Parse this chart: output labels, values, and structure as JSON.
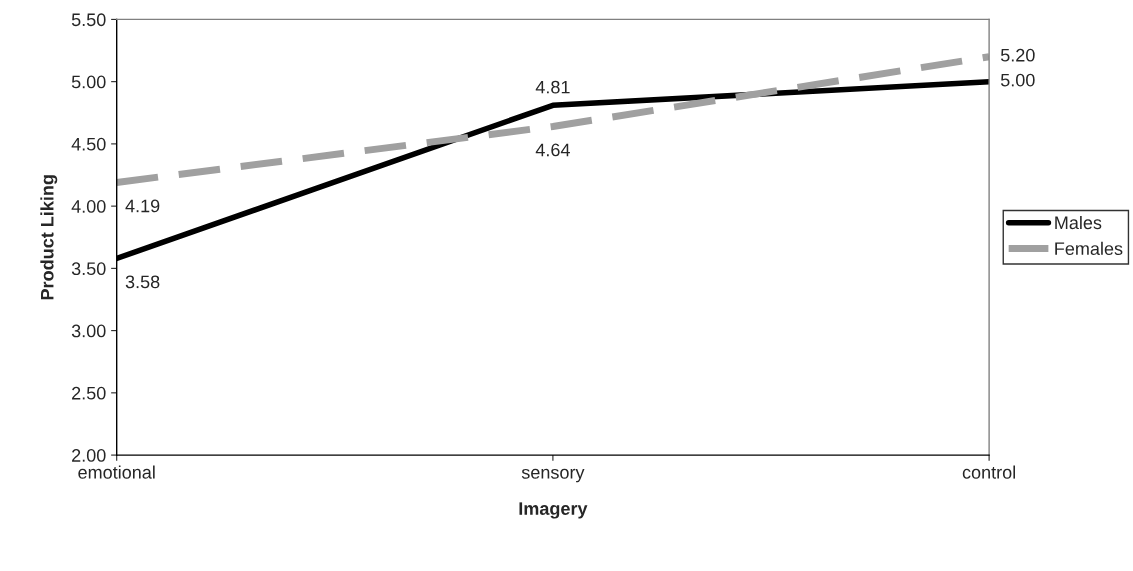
{
  "chart_data": {
    "type": "line",
    "xlabel": "Imagery",
    "ylabel": "Product Liking",
    "categories": [
      "emotional",
      "sensory",
      "control"
    ],
    "series": [
      {
        "name": "Males",
        "color": "#000000",
        "line_style": "solid",
        "values": [
          3.58,
          4.81,
          5.0
        ],
        "value_labels": [
          "3.58",
          "4.81",
          "5.00"
        ]
      },
      {
        "name": "Females",
        "color": "#a0a0a0",
        "line_style": "dashed",
        "values": [
          4.19,
          4.64,
          5.2
        ],
        "value_labels": [
          "4.19",
          "4.64",
          "5.20"
        ]
      }
    ],
    "ylim": [
      2.0,
      5.5
    ],
    "yticks": [
      {
        "value": 2.0,
        "label": "2.00"
      },
      {
        "value": 2.5,
        "label": "2.50"
      },
      {
        "value": 3.0,
        "label": "3.00"
      },
      {
        "value": 3.5,
        "label": "3.50"
      },
      {
        "value": 4.0,
        "label": "4.00"
      },
      {
        "value": 4.5,
        "label": "4.50"
      },
      {
        "value": 5.0,
        "label": "5.00"
      },
      {
        "value": 5.5,
        "label": "5.50"
      }
    ],
    "grid": false,
    "legend": "right",
    "marker": "none"
  }
}
